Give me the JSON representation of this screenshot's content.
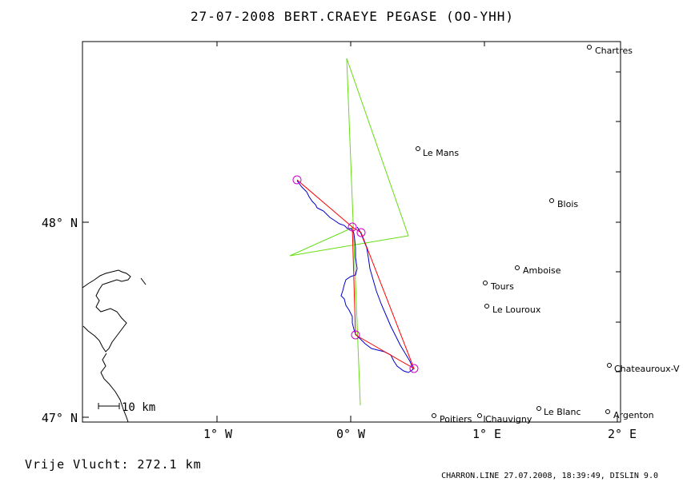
{
  "title": "27-07-2008   BERT.CRAEYE   PEGASE (OO-YHH)",
  "axes": {
    "x_ticks": [
      "1° W",
      "0° W",
      "1° E",
      "2° E"
    ],
    "y_ticks": [
      "48° N",
      "47° N"
    ]
  },
  "scale_bar_label": "10 km",
  "distance_label": "Vrije Vlucht:  272.1 km",
  "footer": "CHARRON.LINE 27.07.2008, 18:39:49, DISLIN 9.0",
  "cities": [
    {
      "name": "Chartres"
    },
    {
      "name": "Le Mans"
    },
    {
      "name": "Blois"
    },
    {
      "name": "Amboise"
    },
    {
      "name": "Tours"
    },
    {
      "name": "Le Louroux"
    },
    {
      "name": "Chateauroux-V"
    },
    {
      "name": "Le Blanc"
    },
    {
      "name": "Argenton"
    },
    {
      "name": "Poitiers"
    },
    {
      "name": "Chauvigny"
    }
  ],
  "colors": {
    "track": "#0000cc",
    "task_route": "#ff0000",
    "sector_lines": "#66dd11",
    "turnpoints": "#cc00cc",
    "coastline": "#000000"
  }
}
